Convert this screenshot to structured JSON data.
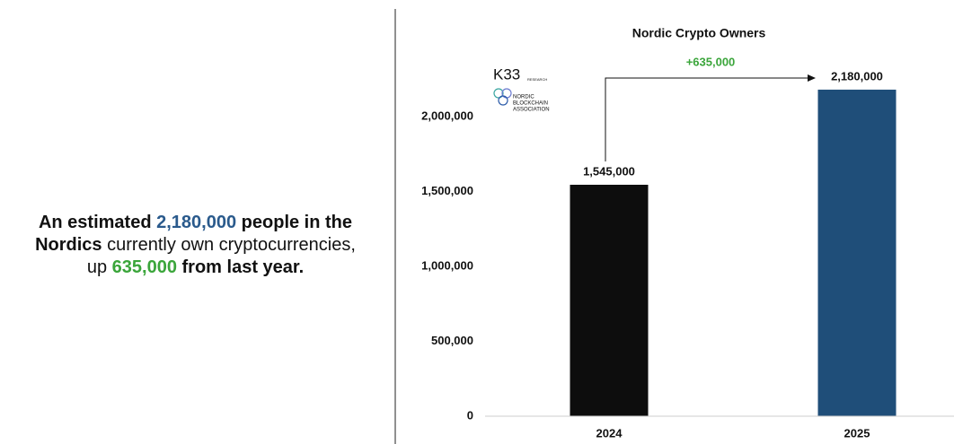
{
  "headline": [
    {
      "text": "An estimated",
      "style": "bold"
    },
    {
      "text": "2,180,000",
      "style": "blue"
    },
    {
      "text": "people in the",
      "style": "bold"
    },
    {
      "text": "Nordics",
      "style": "bold"
    },
    {
      "text": "currently own cryptocurrencies,",
      "style": "plain"
    },
    {
      "text": "up",
      "style": "plain"
    },
    {
      "text": "635,000",
      "style": "green"
    },
    {
      "text": "from last year.",
      "style": "bold"
    }
  ],
  "logos": {
    "k33": "K33",
    "k33_sub": "RESEARCH",
    "nba": [
      "NORDIC",
      "BLOCKCHAIN",
      "ASSOCIATION"
    ]
  },
  "chart_data": {
    "type": "bar",
    "title": "Nordic Crypto Owners",
    "categories": [
      "2024",
      "2025"
    ],
    "values": [
      1545000,
      2180000
    ],
    "value_labels": [
      "1,545,000",
      "2,180,000"
    ],
    "colors": [
      "#0d0d0d",
      "#1f4e79"
    ],
    "annotation": "+635,000",
    "annotation_color": "#3aa53a",
    "ylim": [
      0,
      2400000
    ],
    "yticks": [
      0,
      {
        "value": 500000,
        "label": "500,000"
      },
      {
        "value": 1000000,
        "label": "1,000,000"
      },
      {
        "value": 1500000,
        "label": "1,500,000"
      },
      {
        "value": 2000000,
        "label": "2,000,000"
      }
    ],
    "grid": false
  }
}
